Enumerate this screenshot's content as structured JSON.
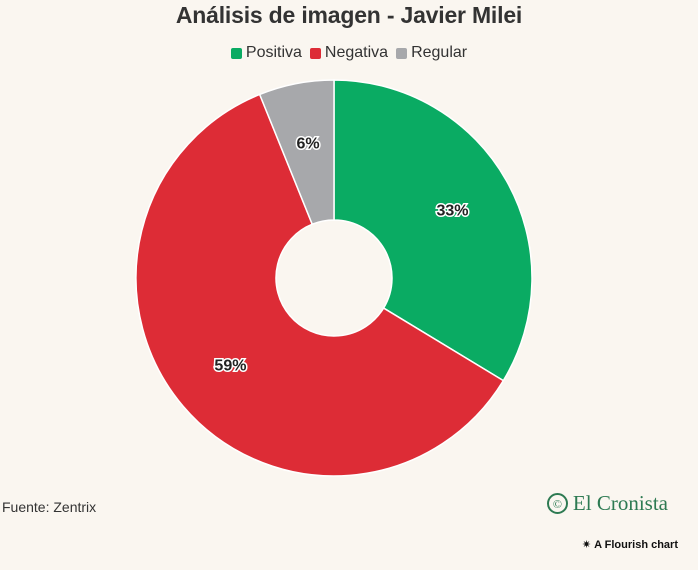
{
  "chart_data": {
    "type": "pie",
    "title": "Análisis de imagen - Javier Milei",
    "categories": [
      "Positiva",
      "Negativa",
      "Regular"
    ],
    "values": [
      33,
      59,
      6
    ],
    "value_labels": [
      "33%",
      "59%",
      "6%"
    ],
    "colors": [
      "#0aab63",
      "#dd2c36",
      "#a7a8ab"
    ],
    "legend_position": "top-center",
    "donut": true
  },
  "footer": {
    "source": "Fuente: Zentrix",
    "brand": "El Cronista",
    "brand_icon": "©",
    "credit": "A Flourish chart",
    "credit_icon": "✷"
  }
}
